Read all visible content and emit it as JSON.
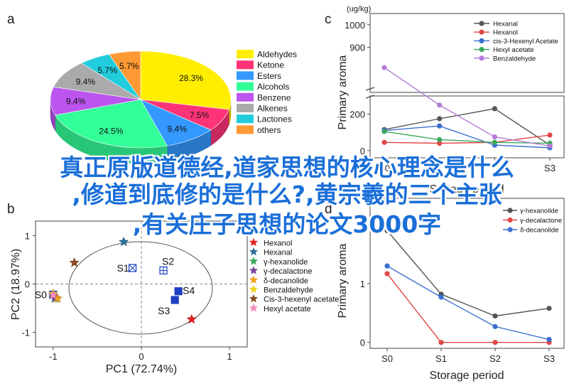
{
  "panel_letters": [
    "a",
    "b",
    "c",
    "d"
  ],
  "overlay_lines": [
    "真正原版道德经,道家思想的核心理念是什么",
    ",修道到底修的是什么?,黄宗羲的三个主张",
    ",有关庄子思想的论文3000字"
  ],
  "chart_data": [
    {
      "id": "a",
      "type": "pie",
      "slices": [
        {
          "name": "Aldehydes",
          "label": "28.3%",
          "value": 28.3,
          "color": "#ffee00"
        },
        {
          "name": "Ketone",
          "label": "7.5%",
          "value": 7.5,
          "color": "#ff3377"
        },
        {
          "name": "Esters",
          "label": "9.4%",
          "value": 9.4,
          "color": "#3399ff"
        },
        {
          "name": "Alcohols",
          "label": "24.5%",
          "value": 24.5,
          "color": "#33ff99"
        },
        {
          "name": "Benzene",
          "label": "9.4%",
          "value": 9.4,
          "color": "#bb55ee"
        },
        {
          "name": "Alkenes",
          "label": "9.4%",
          "value": 9.4,
          "color": "#aaaaaa"
        },
        {
          "name": "Lactones",
          "label": "5.7%",
          "value": 5.7,
          "color": "#22ccdd"
        },
        {
          "name": "others",
          "label": "5.7%",
          "value": 5.7,
          "color": "#ff9933"
        }
      ],
      "legend": "right"
    },
    {
      "id": "b",
      "type": "scatter",
      "xlabel": "PC1 (72.74%)",
      "ylabel": "PC2 (18.97%)",
      "xlim": [
        -1.2,
        1.2
      ],
      "ylim": [
        -1.3,
        1.3
      ],
      "xticks": [
        "-1",
        "0",
        "1"
      ],
      "xtick_values": [
        -1,
        0,
        1
      ],
      "yticks": [
        "1",
        "0",
        "-1"
      ],
      "ytick_values": [
        1,
        0,
        -1
      ],
      "legend": "right",
      "stars": [
        {
          "name": "Hexanol",
          "color": "#e02020",
          "x": 0.57,
          "y": -0.73
        },
        {
          "name": "Hexanal",
          "color": "#2a6f97",
          "x": -0.2,
          "y": 0.87
        },
        {
          "name": "γ-hexanolide",
          "color": "#3aa860",
          "x": -0.98,
          "y": -0.3
        },
        {
          "name": "γ-decalactone",
          "color": "#7b3f9c",
          "x": -0.98,
          "y": -0.28
        },
        {
          "name": "δ-decanolide",
          "color": "#f0a020",
          "x": -0.95,
          "y": -0.3
        },
        {
          "name": "Benzaldehyde",
          "color": "#f0d020",
          "x": -1.0,
          "y": -0.2
        },
        {
          "name": "Cis-3-hexenyl acetate",
          "color": "#8b4a22",
          "x": -0.76,
          "y": 0.44
        },
        {
          "name": "Hexyl acetate",
          "color": "#f08bb8",
          "x": -1.0,
          "y": -0.23
        }
      ],
      "samples": [
        {
          "label": "S0",
          "x": -1.0,
          "y": -0.22
        },
        {
          "label": "S1",
          "x": -0.1,
          "y": 0.33
        },
        {
          "label": "S2",
          "x": 0.25,
          "y": 0.28
        },
        {
          "label": "S3",
          "x": 0.38,
          "y": -0.33
        },
        {
          "label": "S4",
          "x": 0.42,
          "y": -0.15
        }
      ]
    },
    {
      "id": "c",
      "type": "line",
      "unit_label": "(ug/kg)",
      "xlabel": "Storage period",
      "ylabel": "Primary aroma",
      "categories": [
        "S0",
        "S1",
        "S2",
        "S3"
      ],
      "visible_xticks": [
        "S0",
        "",
        "",
        "S3"
      ],
      "yticks_upper": [
        "1000",
        "900"
      ],
      "ytick_values_upper": [
        1000,
        900
      ],
      "yticks_lower": [
        "200",
        "0"
      ],
      "ytick_values_lower": [
        200,
        0
      ],
      "axis_break": [
        300,
        700
      ],
      "legend": "top-right",
      "series": [
        {
          "name": "Hexanal",
          "color": "#555555",
          "values": [
            115,
            175,
            230,
            30
          ]
        },
        {
          "name": "Hexanol",
          "color": "#e04848",
          "values": [
            45,
            40,
            45,
            85
          ]
        },
        {
          "name": "cis-3-Hexenyl Acetate",
          "color": "#3a6fd0",
          "values": [
            110,
            135,
            30,
            15
          ]
        },
        {
          "name": "Hexyl acetate",
          "color": "#3aaa5c",
          "values": [
            105,
            60,
            45,
            40
          ]
        },
        {
          "name": "Benzaldehyde",
          "color": "#b57ad8",
          "values": [
            810,
            250,
            75,
            25
          ]
        }
      ]
    },
    {
      "id": "d",
      "type": "line",
      "xlabel": "Storage period",
      "ylabel": "Primary aroma",
      "categories": [
        "S0",
        "S1",
        "S2",
        "S3"
      ],
      "ylim": [
        -0.1,
        2.45
      ],
      "yticks": [
        "0",
        "1",
        "2"
      ],
      "ytick_values": [
        0,
        1,
        2
      ],
      "legend": "top-right",
      "series": [
        {
          "name": "γ-hexanolide",
          "color": "#555555",
          "values": [
            1.9,
            0.82,
            0.45,
            0.58
          ]
        },
        {
          "name": "γ-decalactone",
          "color": "#e04848",
          "values": [
            1.17,
            0.0,
            0.0,
            0.0
          ]
        },
        {
          "name": "δ-decanolide",
          "color": "#3a6fd0",
          "values": [
            1.3,
            0.77,
            0.27,
            0.05
          ]
        }
      ]
    }
  ]
}
